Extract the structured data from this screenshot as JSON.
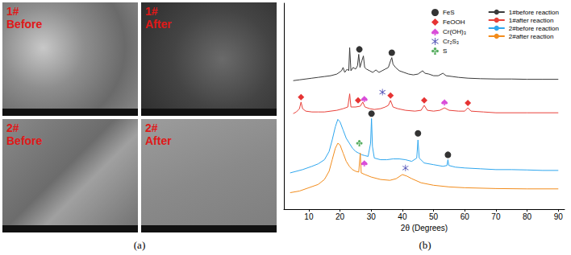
{
  "figure": {
    "panels": [
      {
        "label": "(a)",
        "images": [
          {
            "title": [
              "1#",
              "Before"
            ]
          },
          {
            "title": [
              "1#",
              "After"
            ]
          },
          {
            "title": [
              "2#",
              "Before"
            ]
          },
          {
            "title": [
              "2#",
              "After"
            ]
          }
        ]
      },
      {
        "label": "(b)"
      }
    ]
  },
  "chart_data": {
    "type": "line",
    "x_label": "2θ (Degrees)",
    "xlim": [
      2,
      92
    ],
    "xticks": [
      10,
      20,
      30,
      40,
      50,
      60,
      70,
      80,
      90
    ],
    "ylim": [
      0,
      125
    ],
    "tick_labels": "x",
    "grid": false,
    "legend": "upper right",
    "series": [
      {
        "name": "1#before reaction",
        "type": "line",
        "color": "#3a3a3a",
        "x": [
          5,
          7,
          9,
          11,
          13,
          15,
          17,
          19,
          20.5,
          21,
          21.5,
          22.3,
          22.8,
          23.1,
          23.5,
          24.2,
          25,
          25.6,
          26,
          26.4,
          27,
          27.5,
          27.9,
          28.5,
          29.5,
          30.5,
          31.5,
          32.5,
          33.5,
          34.5,
          35.5,
          36.2,
          36.6,
          37,
          37.8,
          39,
          40.5,
          42,
          43.5,
          45,
          46.5,
          47.2,
          48.5,
          50,
          51.5,
          53,
          54,
          56,
          58,
          61,
          65,
          70,
          75,
          80,
          85,
          90
        ],
        "values": [
          78,
          78.5,
          79,
          79.5,
          80,
          80.5,
          81,
          82,
          84,
          86,
          83,
          85,
          84,
          98,
          84,
          86,
          85,
          87,
          94,
          86,
          90,
          93,
          86,
          85,
          84,
          83,
          84.5,
          83,
          84,
          85,
          86,
          90,
          92,
          88,
          86,
          84,
          83,
          82,
          81.5,
          82,
          84,
          82.5,
          82,
          81,
          81,
          82.5,
          81,
          80.5,
          80,
          79.5,
          79.2,
          79,
          79,
          78.8,
          78.8,
          78.8
        ]
      },
      {
        "name": "1#after reaction",
        "type": "line",
        "color": "#e8413a",
        "x": [
          5,
          6,
          7,
          7.5,
          8,
          9,
          11,
          13,
          15,
          17,
          19,
          21,
          22.5,
          23.1,
          23.5,
          25,
          26.5,
          27.3,
          28,
          29.5,
          31,
          33,
          34.5,
          35.5,
          36.2,
          37,
          38.5,
          41,
          44,
          46,
          47,
          48,
          50,
          52,
          53.5,
          55,
          58,
          60,
          61,
          62,
          66,
          70,
          80,
          90
        ],
        "values": [
          58,
          59,
          61,
          65,
          61,
          59.5,
          59,
          59,
          59,
          59.5,
          60,
          61,
          62,
          70,
          62,
          62,
          62.5,
          65,
          62,
          61,
          60.5,
          61,
          62,
          63,
          66,
          62,
          61,
          60,
          59.5,
          60,
          63,
          60,
          59.5,
          60,
          61.5,
          60,
          59.5,
          59.5,
          61.5,
          59.5,
          59,
          58.5,
          58.5,
          58.5
        ]
      },
      {
        "name": "2#before reaction",
        "type": "line",
        "color": "#2ea6ee",
        "x": [
          4,
          8,
          11,
          13,
          15,
          16.5,
          17.5,
          18.5,
          19.3,
          20,
          21,
          22,
          23,
          24,
          25,
          26,
          27,
          28,
          29,
          29.8,
          30.1,
          30.4,
          31,
          33,
          35,
          37,
          39,
          41,
          43,
          44.6,
          45,
          45.4,
          47,
          50,
          53,
          54.3,
          54.6,
          54.9,
          57,
          60,
          65,
          70,
          75,
          80,
          85,
          90
        ],
        "values": [
          22,
          24,
          26,
          27.5,
          30,
          35,
          42,
          50,
          54.5,
          53,
          48,
          43,
          40,
          37,
          35,
          34,
          33,
          32.5,
          32,
          40,
          55,
          38,
          31,
          30,
          30,
          30.5,
          30.5,
          30,
          29,
          31,
          42,
          31,
          28,
          27,
          26,
          26.5,
          30,
          26.5,
          25.5,
          25,
          24.5,
          24,
          24,
          23.8,
          23.5,
          23.5
        ]
      },
      {
        "name": "2#after reaction",
        "type": "line",
        "color": "#f28c1c",
        "x": [
          4,
          7,
          10,
          13,
          15,
          16.5,
          17.5,
          18.5,
          19.3,
          20,
          21,
          22,
          23,
          24,
          25,
          26,
          26.5,
          26.8,
          28,
          30,
          33,
          36,
          38,
          40,
          41.5,
          43,
          46,
          50,
          55,
          60,
          70,
          80,
          90
        ],
        "values": [
          10,
          11,
          13,
          15,
          18,
          23,
          30,
          37,
          40,
          39,
          34,
          29,
          26,
          24,
          23,
          22.5,
          34,
          22,
          21,
          19.5,
          18,
          17.5,
          18.5,
          21,
          20,
          18.5,
          16,
          14.5,
          13.5,
          13,
          12.5,
          12.3,
          12.3
        ]
      },
      {
        "name": "FeS",
        "type": "scatter",
        "marker": "circle",
        "color": "#000000",
        "x": [
          26.2,
          36.6,
          30.1,
          45,
          54.6
        ],
        "values": [
          97,
          95,
          58,
          46,
          33
        ]
      },
      {
        "name": "FeOOH",
        "type": "scatter",
        "marker": "diamond",
        "color": "#e00000",
        "x": [
          7.5,
          25.8,
          36.2,
          47,
          61
        ],
        "values": [
          68,
          66,
          69,
          66,
          64.5
        ]
      },
      {
        "name": "Cr(OH)₃",
        "type": "scatter",
        "marker": "spade",
        "color": "#d020d0",
        "x": [
          27.8,
          53.5,
          27.8
        ],
        "values": [
          67,
          65,
          28
        ]
      },
      {
        "name": "Cr₂S₃",
        "type": "scatter",
        "marker": "asterisk",
        "color": "#1e1ea0",
        "x": [
          33.6,
          41
        ],
        "values": [
          71,
          25
        ]
      },
      {
        "name": "S",
        "type": "scatter",
        "marker": "club",
        "color": "#2e9a3a",
        "x": [
          26.2
        ],
        "values": [
          40
        ]
      }
    ]
  }
}
